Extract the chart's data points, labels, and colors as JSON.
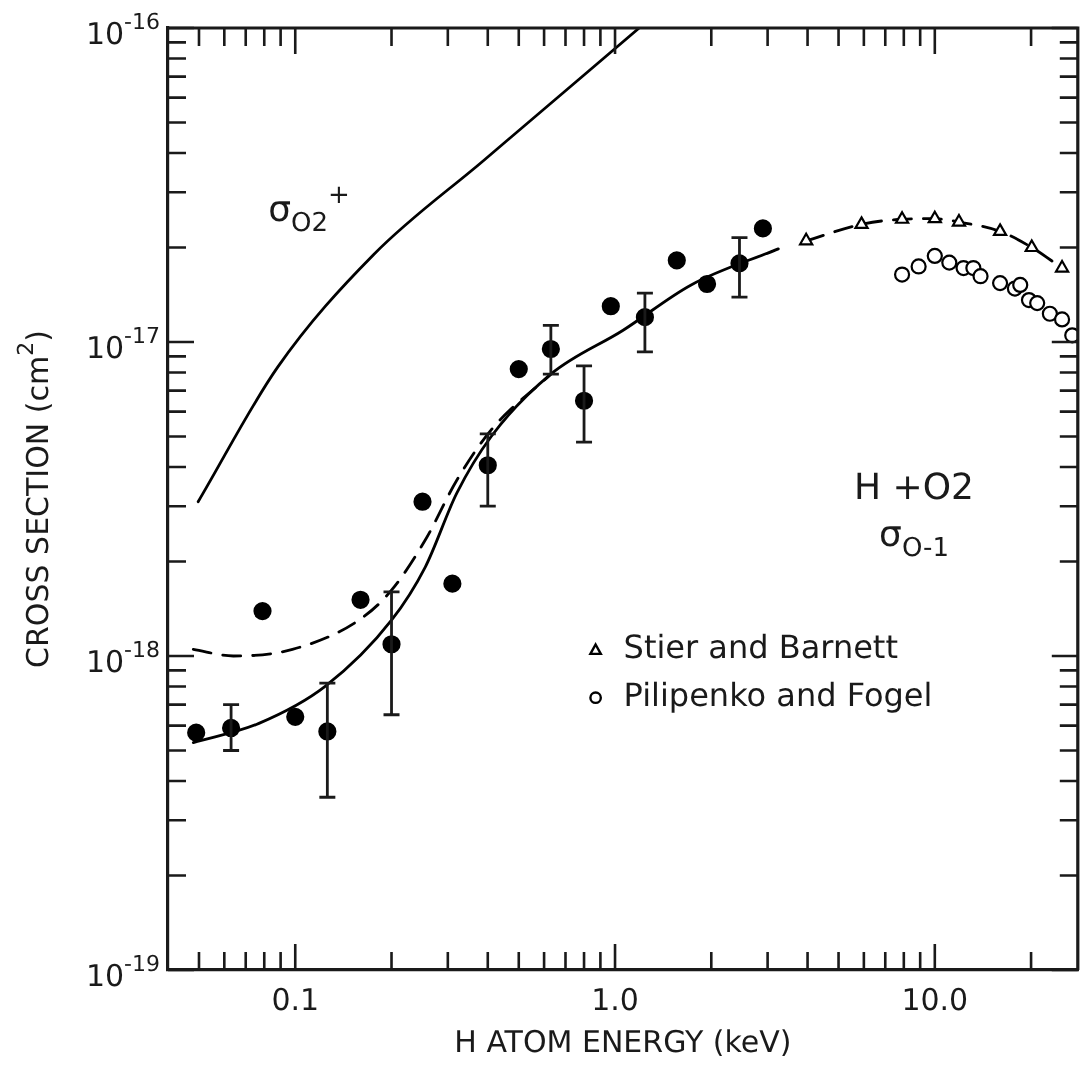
{
  "chart_data": {
    "type": "scatter",
    "xlabel": "H ATOM ENERGY (keV)",
    "ylabel": "CROSS SECTION (cm$^{2}$)",
    "log": "xy",
    "xlim": [
      0.04,
      28
    ],
    "ylim": [
      1e-19,
      1e-16
    ],
    "xticks": [
      {
        "value": 0.05,
        "label": null
      },
      {
        "value": 0.06,
        "label": null
      },
      {
        "value": 0.07,
        "label": null
      },
      {
        "value": 0.08,
        "label": null
      },
      {
        "value": 0.09,
        "label": null
      },
      {
        "value": 0.1,
        "label": "0.1"
      },
      {
        "value": 0.2,
        "label": null
      },
      {
        "value": 0.3,
        "label": null
      },
      {
        "value": 0.4,
        "label": null
      },
      {
        "value": 0.5,
        "label": null
      },
      {
        "value": 0.6,
        "label": null
      },
      {
        "value": 0.7,
        "label": null
      },
      {
        "value": 0.8,
        "label": null
      },
      {
        "value": 0.9,
        "label": null
      },
      {
        "value": 1,
        "label": "1.0"
      },
      {
        "value": 2,
        "label": null
      },
      {
        "value": 3,
        "label": null
      },
      {
        "value": 4,
        "label": null
      },
      {
        "value": 5,
        "label": null
      },
      {
        "value": 6,
        "label": null
      },
      {
        "value": 7,
        "label": null
      },
      {
        "value": 8,
        "label": null
      },
      {
        "value": 9,
        "label": null
      },
      {
        "value": 10,
        "label": "10.0"
      },
      {
        "value": 20,
        "label": null
      }
    ],
    "yticks": [
      {
        "value": 1e-19,
        "label": "10$^{-19}$"
      },
      {
        "value": 2e-19,
        "label": null
      },
      {
        "value": 3e-19,
        "label": null
      },
      {
        "value": 4e-19,
        "label": null
      },
      {
        "value": 5e-19,
        "label": null
      },
      {
        "value": 6e-19,
        "label": null
      },
      {
        "value": 7e-19,
        "label": null
      },
      {
        "value": 8e-19,
        "label": null
      },
      {
        "value": 9e-19,
        "label": null
      },
      {
        "value": 1e-18,
        "label": "10$^{-18}$"
      },
      {
        "value": 2e-18,
        "label": null
      },
      {
        "value": 3e-18,
        "label": null
      },
      {
        "value": 4e-18,
        "label": null
      },
      {
        "value": 5e-18,
        "label": null
      },
      {
        "value": 6e-18,
        "label": null
      },
      {
        "value": 7e-18,
        "label": null
      },
      {
        "value": 8e-18,
        "label": null
      },
      {
        "value": 9e-18,
        "label": null
      },
      {
        "value": 1e-17,
        "label": "10$^{-17}$"
      },
      {
        "value": 2e-17,
        "label": null
      },
      {
        "value": 3e-17,
        "label": null
      },
      {
        "value": 4e-17,
        "label": null
      },
      {
        "value": 5e-17,
        "label": null
      },
      {
        "value": 6e-17,
        "label": null
      },
      {
        "value": 7e-17,
        "label": null
      },
      {
        "value": 8e-17,
        "label": null
      },
      {
        "value": 9e-17,
        "label": null
      },
      {
        "value": 1e-16,
        "label": "10$^{-16}$"
      }
    ],
    "legend": "right",
    "annotations": [
      "σ$_{O2}$$^{+}$",
      "H +O2",
      "σ$_{O-1}$"
    ],
    "series": [
      {
        "type": "scatter",
        "color": "#000000",
        "marker": "circle",
        "x": [
          0.049,
          0.063,
          0.079,
          0.1,
          0.126,
          0.16,
          0.2,
          0.25,
          0.31,
          0.4,
          0.5,
          0.63,
          0.8,
          0.97,
          1.24,
          1.56,
          1.94,
          2.45,
          2.9
        ],
        "values": [
          5.7e-19,
          5.9e-19,
          1.39e-18,
          6.4e-19,
          5.75e-19,
          1.51e-18,
          1.09e-18,
          3.1e-18,
          1.7e-18,
          4.05e-18,
          8.2e-18,
          9.5e-18,
          6.5e-18,
          1.3e-17,
          1.2e-17,
          1.82e-17,
          1.53e-17,
          1.78e-17,
          2.3e-17
        ],
        "errors": [
          null,
          [
            5e-19,
            7e-19
          ],
          null,
          null,
          [
            3.55e-19,
            8.2e-19
          ],
          null,
          [
            6.5e-19,
            1.6e-18
          ],
          null,
          null,
          [
            3e-18,
            5.1e-18
          ],
          null,
          [
            7.9e-18,
            1.13e-17
          ],
          [
            4.8e-18,
            8.4e-18
          ],
          null,
          [
            9.3e-18,
            1.43e-17
          ],
          null,
          null,
          [
            1.39e-17,
            2.15e-17
          ],
          null
        ]
      },
      {
        "type": "line",
        "name": "Stier and Barnett",
        "color": "#000000",
        "marker": "triangle",
        "line_style": "dashed",
        "x": [
          3.96,
          5.9,
          7.9,
          10,
          11.9,
          16,
          20.1,
          25
        ],
        "values": [
          2.1e-17,
          2.37e-17,
          2.46e-17,
          2.47e-17,
          2.41e-17,
          2.25e-17,
          2e-17,
          1.72e-17
        ]
      },
      {
        "type": "scatter",
        "name": "Pilipenko and Fogel",
        "color": "#000000",
        "marker": "circle",
        "x": [
          7.9,
          8.9,
          10.0,
          11.1,
          12.3,
          13.2,
          13.9,
          16,
          17.8,
          18.5,
          19.7,
          20.9,
          22.9,
          25,
          26.9
        ],
        "values": [
          1.64e-17,
          1.74e-17,
          1.88e-17,
          1.79e-17,
          1.72e-17,
          1.72e-17,
          1.62e-17,
          1.54e-17,
          1.48e-17,
          1.52e-17,
          1.36e-17,
          1.33e-17,
          1.23e-17,
          1.18e-17,
          1.05e-17
        ]
      },
      {
        "type": "line",
        "color": "#000000",
        "marker": "none",
        "line_style": "solid",
        "x": [
          0.0497,
          0.088,
          0.176,
          0.39,
          1.19
        ],
        "values": [
          3.1e-18,
          8.3e-18,
          1.9e-17,
          3.8e-17,
          1e-16
        ]
      },
      {
        "type": "line",
        "color": "#000000",
        "marker": "none",
        "line_style": "solid",
        "x": [
          0.048,
          0.077,
          0.124,
          0.2,
          0.255,
          0.32,
          0.41,
          0.63,
          1.06,
          1.73,
          3.24
        ],
        "values": [
          5.3e-19,
          6.1e-19,
          8e-19,
          1.3e-18,
          1.92e-18,
          3.3e-18,
          5e-18,
          7.9e-18,
          1.09e-17,
          1.52e-17,
          1.98e-17
        ]
      },
      {
        "type": "line",
        "color": "#000000",
        "marker": "none",
        "line_style": "dashed",
        "x": [
          0.048,
          0.064,
          0.098,
          0.158,
          0.2,
          0.255,
          0.32,
          0.41,
          0.63
        ],
        "values": [
          1.05e-18,
          1e-18,
          1.05e-18,
          1.3e-18,
          1.62e-18,
          2.34e-18,
          3.63e-18,
          5.25e-18,
          7.9e-18
        ]
      }
    ]
  }
}
